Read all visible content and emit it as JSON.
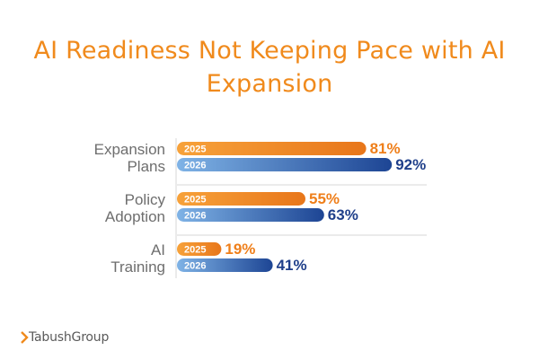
{
  "title_line1": "AI Readiness Not Keeping Pace with AI",
  "title_line2": "Expansion",
  "brand": "TabushGroup",
  "colors": {
    "series_2025_start": "#f7a23a",
    "series_2025_end": "#e8761a",
    "series_2026_start": "#7fb3e6",
    "series_2026_end": "#1d4594",
    "label_2025": "#ef7f1a",
    "label_2026": "#1f3f8a",
    "category_text": "#6e6e6e",
    "separator": "#d7d7d7"
  },
  "chart_data": {
    "type": "bar",
    "orientation": "horizontal",
    "categories": [
      "Expansion Plans",
      "Policy Adoption",
      "AI Training"
    ],
    "category_lines": [
      [
        "Expansion",
        "Plans"
      ],
      [
        "Policy",
        "Adoption"
      ],
      [
        "AI",
        "Training"
      ]
    ],
    "series": [
      {
        "name": "2025",
        "values": [
          81,
          55,
          19
        ],
        "labels": [
          "81%",
          "55%",
          "19%"
        ]
      },
      {
        "name": "2026",
        "values": [
          92,
          63,
          41
        ],
        "labels": [
          "92%",
          "63%",
          "41%"
        ]
      }
    ],
    "xlim": [
      0,
      100
    ]
  }
}
